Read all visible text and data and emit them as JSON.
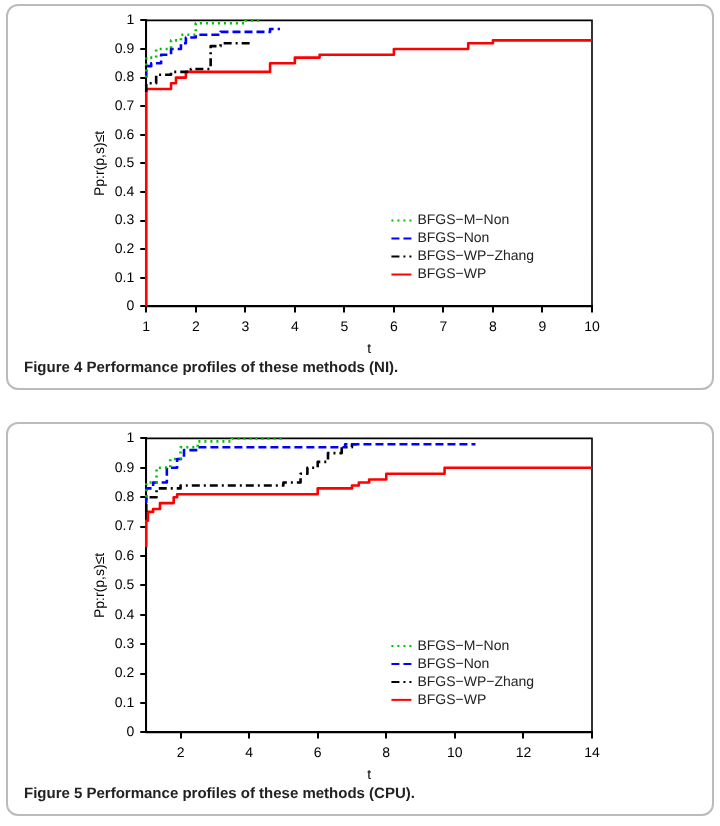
{
  "chart_data": [
    {
      "type": "step",
      "title": "Figure 4  Performance profiles of these methods (NI).",
      "xlabel": "t",
      "ylabel": "Pp:r(p,s)≤t",
      "xlim": [
        1,
        10
      ],
      "xticks": [
        1,
        2,
        3,
        4,
        5,
        6,
        7,
        8,
        9,
        10
      ],
      "ylim": [
        0,
        1
      ],
      "yticks": [
        0,
        0.1,
        0.2,
        0.3,
        0.4,
        0.5,
        0.6,
        0.7,
        0.8,
        0.9,
        1
      ],
      "grid": false,
      "legend": "bottom right",
      "marker": "none",
      "series": [
        {
          "name": "BFGS−M−Non",
          "color": "#00c000",
          "line_style": "dotted",
          "x": [
            1,
            1.2,
            1.5,
            1.7,
            2,
            3,
            3.3
          ],
          "values": [
            0.8,
            0.87,
            0.9,
            0.93,
            0.95,
            0.99,
            1
          ]
        },
        {
          "name": "BFGS−Non",
          "color": "#0000ff",
          "line_style": "dashed",
          "x": [
            1,
            1.1,
            1.3,
            1.5,
            1.7,
            1.8,
            2,
            2.5,
            3.5,
            3.7
          ],
          "values": [
            0.8,
            0.84,
            0.85,
            0.88,
            0.9,
            0.92,
            0.94,
            0.95,
            0.96,
            0.97
          ]
        },
        {
          "name": "BFGS−WP−Zhang",
          "color": "#000000",
          "line_style": "dashdot",
          "x": [
            1,
            1.2,
            1.5,
            1.9,
            2.3,
            2.5,
            2.8,
            3.1
          ],
          "values": [
            0.75,
            0.78,
            0.81,
            0.82,
            0.83,
            0.91,
            0.92,
            0.92
          ]
        },
        {
          "name": "BFGS−WP",
          "color": "#ff0000",
          "line_style": "solid",
          "x": [
            1,
            1,
            1.5,
            1.6,
            1.8,
            3.5,
            4,
            4.5,
            6,
            7.5,
            8,
            8.5,
            10
          ],
          "values": [
            0,
            0.75,
            0.76,
            0.78,
            0.8,
            0.82,
            0.85,
            0.87,
            0.88,
            0.9,
            0.92,
            0.93,
            0.93
          ]
        }
      ]
    },
    {
      "type": "step",
      "title": "Figure 5  Performance profiles of these methods (CPU).",
      "xlabel": "t",
      "ylabel": "Pp:r(p,s)≤t",
      "xlim": [
        1,
        14
      ],
      "xticks": [
        2,
        4,
        6,
        8,
        10,
        12,
        14
      ],
      "ylim": [
        0,
        1
      ],
      "yticks": [
        0,
        0.1,
        0.2,
        0.3,
        0.4,
        0.5,
        0.6,
        0.7,
        0.8,
        0.9,
        1
      ],
      "grid": false,
      "legend": "bottom right",
      "marker": "none",
      "series": [
        {
          "name": "BFGS−M−Non",
          "color": "#00c000",
          "line_style": "dotted",
          "x": [
            1,
            1.3,
            1.7,
            2,
            2.5,
            3.5,
            4,
            5
          ],
          "values": [
            0.8,
            0.85,
            0.9,
            0.93,
            0.97,
            0.99,
            1,
            1
          ]
        },
        {
          "name": "BFGS−Non",
          "color": "#0000ff",
          "line_style": "dashed",
          "x": [
            1,
            1.2,
            1.6,
            1.9,
            2.1,
            2.5,
            6.8,
            7,
            10.6
          ],
          "values": [
            0.78,
            0.83,
            0.85,
            0.9,
            0.93,
            0.96,
            0.97,
            0.98,
            0.98
          ]
        },
        {
          "name": "BFGS−WP−Zhang",
          "color": "#000000",
          "line_style": "dashdot",
          "x": [
            1,
            1.3,
            2,
            5,
            5.5,
            5.7,
            6,
            6.3,
            6.7,
            7,
            7.2
          ],
          "values": [
            0.75,
            0.8,
            0.83,
            0.84,
            0.85,
            0.88,
            0.9,
            0.92,
            0.95,
            0.97,
            0.98
          ]
        },
        {
          "name": "BFGS−WP",
          "color": "#ff0000",
          "line_style": "solid",
          "x": [
            1,
            1.05,
            1.2,
            1.4,
            1.8,
            1.9,
            6,
            7,
            7.2,
            7.5,
            8,
            9.7,
            11.9,
            14
          ],
          "values": [
            0.63,
            0.72,
            0.75,
            0.76,
            0.78,
            0.8,
            0.81,
            0.83,
            0.84,
            0.85,
            0.86,
            0.88,
            0.9,
            0.9
          ]
        }
      ]
    }
  ]
}
